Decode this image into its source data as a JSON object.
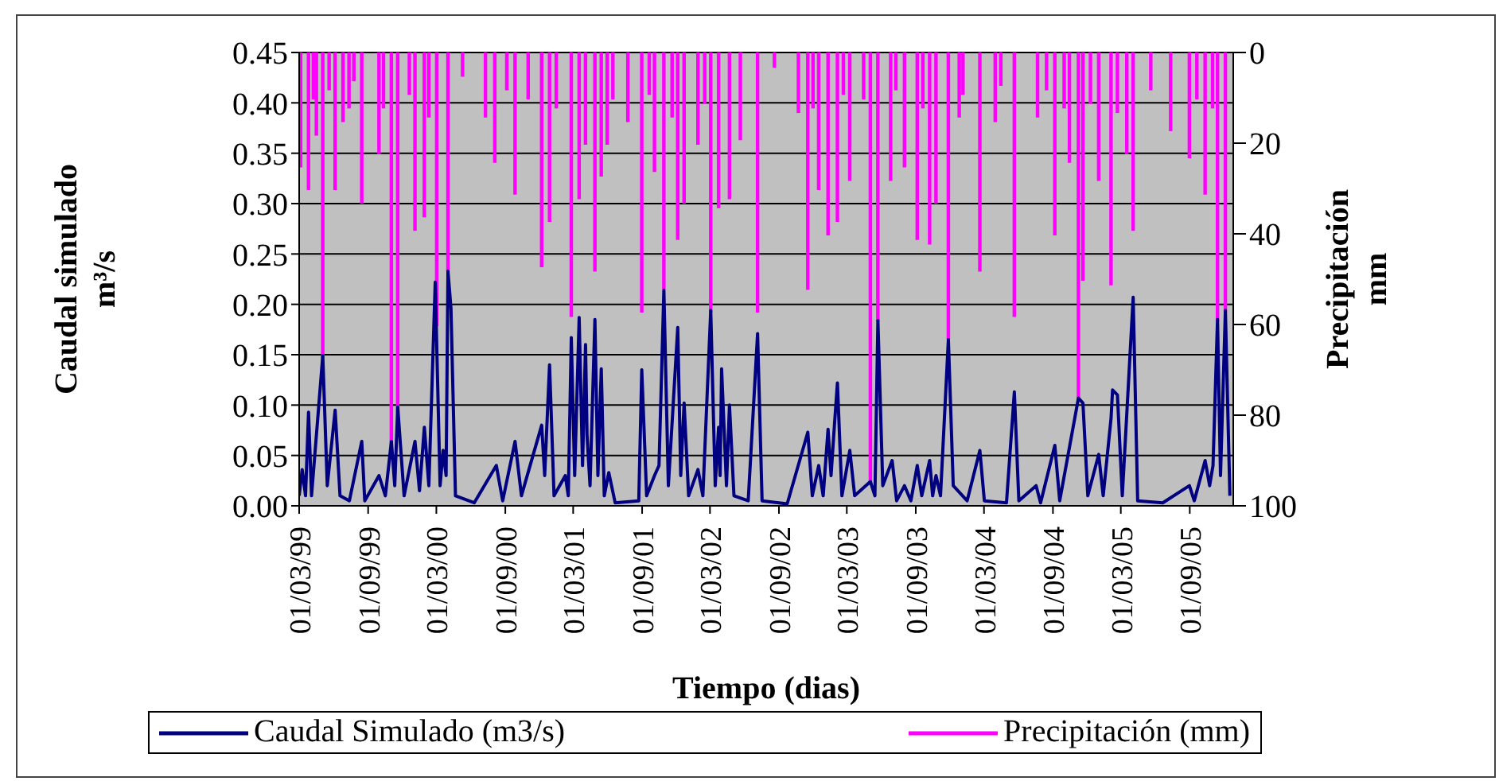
{
  "chart_data": {
    "type": "line",
    "xlabel": "Tiempo (dias)",
    "ylabel": "Caudal simulado m³/s",
    "y2label": "Precipitación mm",
    "xlim": [
      "1999-03-01",
      "2005-12-26"
    ],
    "xticks": [
      {
        "value": "1999-03-01",
        "label": "01/03/99"
      },
      {
        "value": "1999-09-01",
        "label": "01/09/99"
      },
      {
        "value": "2000-03-01",
        "label": "01/03/00"
      },
      {
        "value": "2000-09-01",
        "label": "01/09/00"
      },
      {
        "value": "2001-03-01",
        "label": "01/03/01"
      },
      {
        "value": "2001-09-01",
        "label": "01/09/01"
      },
      {
        "value": "2002-03-01",
        "label": "01/03/02"
      },
      {
        "value": "2002-09-01",
        "label": "01/09/02"
      },
      {
        "value": "2003-03-01",
        "label": "01/03/03"
      },
      {
        "value": "2003-09-01",
        "label": "01/09/03"
      },
      {
        "value": "2004-03-01",
        "label": "01/03/04"
      },
      {
        "value": "2004-09-01",
        "label": "01/09/04"
      },
      {
        "value": "2005-03-01",
        "label": "01/03/05"
      },
      {
        "value": "2005-09-01",
        "label": "01/09/05"
      }
    ],
    "ylim": [
      0,
      0.45
    ],
    "yticks": [
      {
        "value": 0,
        "label": "0.00"
      },
      {
        "value": 0.05,
        "label": "0.05"
      },
      {
        "value": 0.1,
        "label": "0.10"
      },
      {
        "value": 0.15,
        "label": "0.15"
      },
      {
        "value": 0.2,
        "label": "0.20"
      },
      {
        "value": 0.25,
        "label": "0.25"
      },
      {
        "value": 0.3,
        "label": "0.30"
      },
      {
        "value": 0.35,
        "label": "0.35"
      },
      {
        "value": 0.4,
        "label": "0.40"
      },
      {
        "value": 0.45,
        "label": "0.45"
      }
    ],
    "y2lim": [
      100,
      0
    ],
    "y2ticks": [
      0,
      20,
      40,
      60,
      80,
      100
    ],
    "grid": "y",
    "legend": "bottom",
    "marker": "none",
    "series": [
      {
        "name": "Caudal Simulado (m3/s)",
        "color": "#000080",
        "x": [
          "1999-03-01",
          "1999-03-09",
          "1999-03-18",
          "1999-03-26",
          "1999-04-03",
          "1999-05-03",
          "1999-05-15",
          "1999-06-05",
          "1999-06-18",
          "1999-07-13",
          "1999-08-15",
          "1999-08-23",
          "1999-09-30",
          "1999-10-17",
          "1999-11-02",
          "1999-11-11",
          "1999-11-19",
          "1999-12-06",
          "2000-01-04",
          "2000-01-16",
          "2000-01-29",
          "2000-02-10",
          "2000-02-27",
          "2000-03-11",
          "2000-03-19",
          "2000-03-27",
          "2000-04-01",
          "2000-04-09",
          "2000-04-21",
          "2000-06-10",
          "2000-08-08",
          "2000-08-25",
          "2000-09-27",
          "2000-10-14",
          "2000-12-07",
          "2000-12-15",
          "2000-12-28",
          "2001-01-09",
          "2001-02-08",
          "2001-02-16",
          "2001-02-24",
          "2001-03-05",
          "2001-03-17",
          "2001-03-26",
          "2001-04-03",
          "2001-04-07",
          "2001-04-15",
          "2001-04-28",
          "2001-05-06",
          "2001-05-15",
          "2001-05-23",
          "2001-06-04",
          "2001-06-21",
          "2001-08-23",
          "2001-08-31",
          "2001-09-13",
          "2001-10-04",
          "2001-10-16",
          "2001-10-29",
          "2001-11-10",
          "2001-12-05",
          "2001-12-13",
          "2001-12-22",
          "2002-01-03",
          "2002-01-28",
          "2002-02-10",
          "2002-03-03",
          "2002-03-15",
          "2002-03-24",
          "2002-03-28",
          "2002-04-01",
          "2002-04-14",
          "2002-04-22",
          "2002-05-04",
          "2002-06-11",
          "2002-07-06",
          "2002-07-18",
          "2002-09-23",
          "2002-11-17",
          "2002-11-29",
          "2002-12-16",
          "2002-12-28",
          "2003-01-10",
          "2003-01-18",
          "2003-01-27",
          "2003-02-04",
          "2003-02-16",
          "2003-03-09",
          "2003-03-22",
          "2003-05-03",
          "2003-05-15",
          "2003-05-23",
          "2003-06-05",
          "2003-06-30",
          "2003-07-12",
          "2003-08-02",
          "2003-08-19",
          "2003-09-05",
          "2003-09-17",
          "2003-10-08",
          "2003-10-16",
          "2003-10-25",
          "2003-11-06",
          "2003-11-27",
          "2003-12-10",
          "2004-01-16",
          "2004-02-19",
          "2004-03-02",
          "2004-04-30",
          "2004-05-21",
          "2004-06-02",
          "2004-07-18",
          "2004-07-30",
          "2004-09-06",
          "2004-09-19",
          "2004-11-08",
          "2004-11-20",
          "2004-12-03",
          "2005-01-01",
          "2005-01-13",
          "2005-02-03",
          "2005-02-07",
          "2005-02-20",
          "2005-03-05",
          "2005-04-03",
          "2005-04-15",
          "2005-06-21",
          "2005-08-31",
          "2005-09-13",
          "2005-10-12",
          "2005-10-24",
          "2005-11-02",
          "2005-11-14",
          "2005-11-22",
          "2005-12-05",
          "2005-12-17"
        ],
        "values": [
          0.01,
          0.036,
          0.01,
          0.093,
          0.01,
          0.149,
          0.02,
          0.095,
          0.01,
          0.005,
          0.064,
          0.005,
          0.03,
          0.01,
          0.064,
          0.02,
          0.098,
          0.01,
          0.064,
          0.015,
          0.078,
          0.02,
          0.222,
          0.02,
          0.055,
          0.03,
          0.233,
          0.196,
          0.01,
          0.003,
          0.04,
          0.005,
          0.064,
          0.01,
          0.08,
          0.03,
          0.14,
          0.01,
          0.03,
          0.01,
          0.167,
          0.03,
          0.187,
          0.04,
          0.16,
          0.07,
          0.02,
          0.185,
          0.03,
          0.136,
          0.01,
          0.033,
          0.003,
          0.005,
          0.135,
          0.01,
          0.03,
          0.04,
          0.214,
          0.02,
          0.177,
          0.03,
          0.102,
          0.01,
          0.036,
          0.01,
          0.194,
          0.02,
          0.078,
          0.03,
          0.136,
          0.02,
          0.1,
          0.01,
          0.005,
          0.171,
          0.005,
          0.002,
          0.073,
          0.01,
          0.04,
          0.01,
          0.076,
          0.03,
          0.08,
          0.122,
          0.01,
          0.055,
          0.01,
          0.024,
          0.01,
          0.184,
          0.02,
          0.045,
          0.005,
          0.02,
          0.005,
          0.04,
          0.01,
          0.045,
          0.01,
          0.03,
          0.01,
          0.165,
          0.02,
          0.005,
          0.055,
          0.005,
          0.003,
          0.113,
          0.005,
          0.02,
          0.003,
          0.06,
          0.005,
          0.107,
          0.102,
          0.01,
          0.051,
          0.01,
          0.087,
          0.115,
          0.11,
          0.01,
          0.207,
          0.005,
          0.003,
          0.02,
          0.005,
          0.045,
          0.02,
          0.04,
          0.185,
          0.03,
          0.194,
          0.01
        ]
      },
      {
        "name": "Precipitación (mm)",
        "type": "bar",
        "axis": "y2",
        "color": "#ff00ff",
        "x": [
          "1999-03-05",
          "1999-03-26",
          "1999-04-08",
          "1999-04-16",
          "1999-05-03",
          "1999-05-20",
          "1999-06-05",
          "1999-06-26",
          "1999-07-12",
          "1999-07-25",
          "1999-08-15",
          "1999-09-30",
          "1999-10-12",
          "1999-11-02",
          "1999-11-19",
          "1999-12-20",
          "2000-01-04",
          "2000-01-29",
          "2000-02-10",
          "2000-03-02",
          "2000-04-01",
          "2000-05-10",
          "2000-07-10",
          "2000-08-04",
          "2000-09-05",
          "2000-09-27",
          "2000-11-01",
          "2000-12-07",
          "2000-12-28",
          "2001-01-15",
          "2001-02-24",
          "2001-03-17",
          "2001-04-03",
          "2001-04-28",
          "2001-05-15",
          "2001-05-31",
          "2001-06-15",
          "2001-07-25",
          "2001-08-31",
          "2001-09-20",
          "2001-10-04",
          "2001-10-29",
          "2001-11-20",
          "2001-12-05",
          "2001-12-22",
          "2002-01-28",
          "2002-02-15",
          "2002-03-03",
          "2002-03-24",
          "2002-04-22",
          "2002-05-21",
          "2002-07-06",
          "2002-08-20",
          "2002-10-23",
          "2002-11-17",
          "2002-12-01",
          "2002-12-16",
          "2003-01-10",
          "2003-02-04",
          "2003-02-20",
          "2003-03-09",
          "2003-04-15",
          "2003-05-03",
          "2003-05-23",
          "2003-06-26",
          "2003-07-10",
          "2003-08-02",
          "2003-09-05",
          "2003-09-20",
          "2003-10-08",
          "2003-10-25",
          "2003-11-27",
          "2003-12-26",
          "2004-01-05",
          "2004-02-19",
          "2004-03-31",
          "2004-04-15",
          "2004-05-21",
          "2004-07-22",
          "2004-08-15",
          "2004-09-06",
          "2004-10-01",
          "2004-10-15",
          "2004-11-08",
          "2004-11-20",
          "2004-12-10",
          "2005-01-01",
          "2005-02-03",
          "2005-02-20",
          "2005-03-17",
          "2005-04-03",
          "2005-05-20",
          "2005-07-12",
          "2005-08-31",
          "2005-09-20",
          "2005-10-12",
          "2005-11-01",
          "2005-11-14",
          "2005-12-05"
        ],
        "values": [
          25,
          30,
          10,
          18,
          67,
          8,
          30,
          15,
          12,
          6,
          33,
          22,
          12,
          86,
          79,
          9,
          39,
          36,
          14,
          60,
          48,
          5,
          14,
          24,
          8,
          31,
          10,
          47,
          37,
          12,
          58,
          32,
          20,
          48,
          27,
          20,
          10,
          15,
          57,
          9,
          26,
          52,
          14,
          41,
          33,
          20,
          11,
          57,
          34,
          32,
          19,
          57,
          3,
          13,
          52,
          12,
          30,
          40,
          37,
          9,
          28,
          10,
          95,
          59,
          28,
          8,
          25,
          41,
          12,
          42,
          33,
          63,
          14,
          9,
          48,
          15,
          7,
          58,
          14,
          8,
          40,
          12,
          24,
          76,
          50,
          11,
          28,
          51,
          13,
          22,
          39,
          8,
          17,
          23,
          10,
          31,
          12,
          59,
          57
        ]
      }
    ]
  }
}
